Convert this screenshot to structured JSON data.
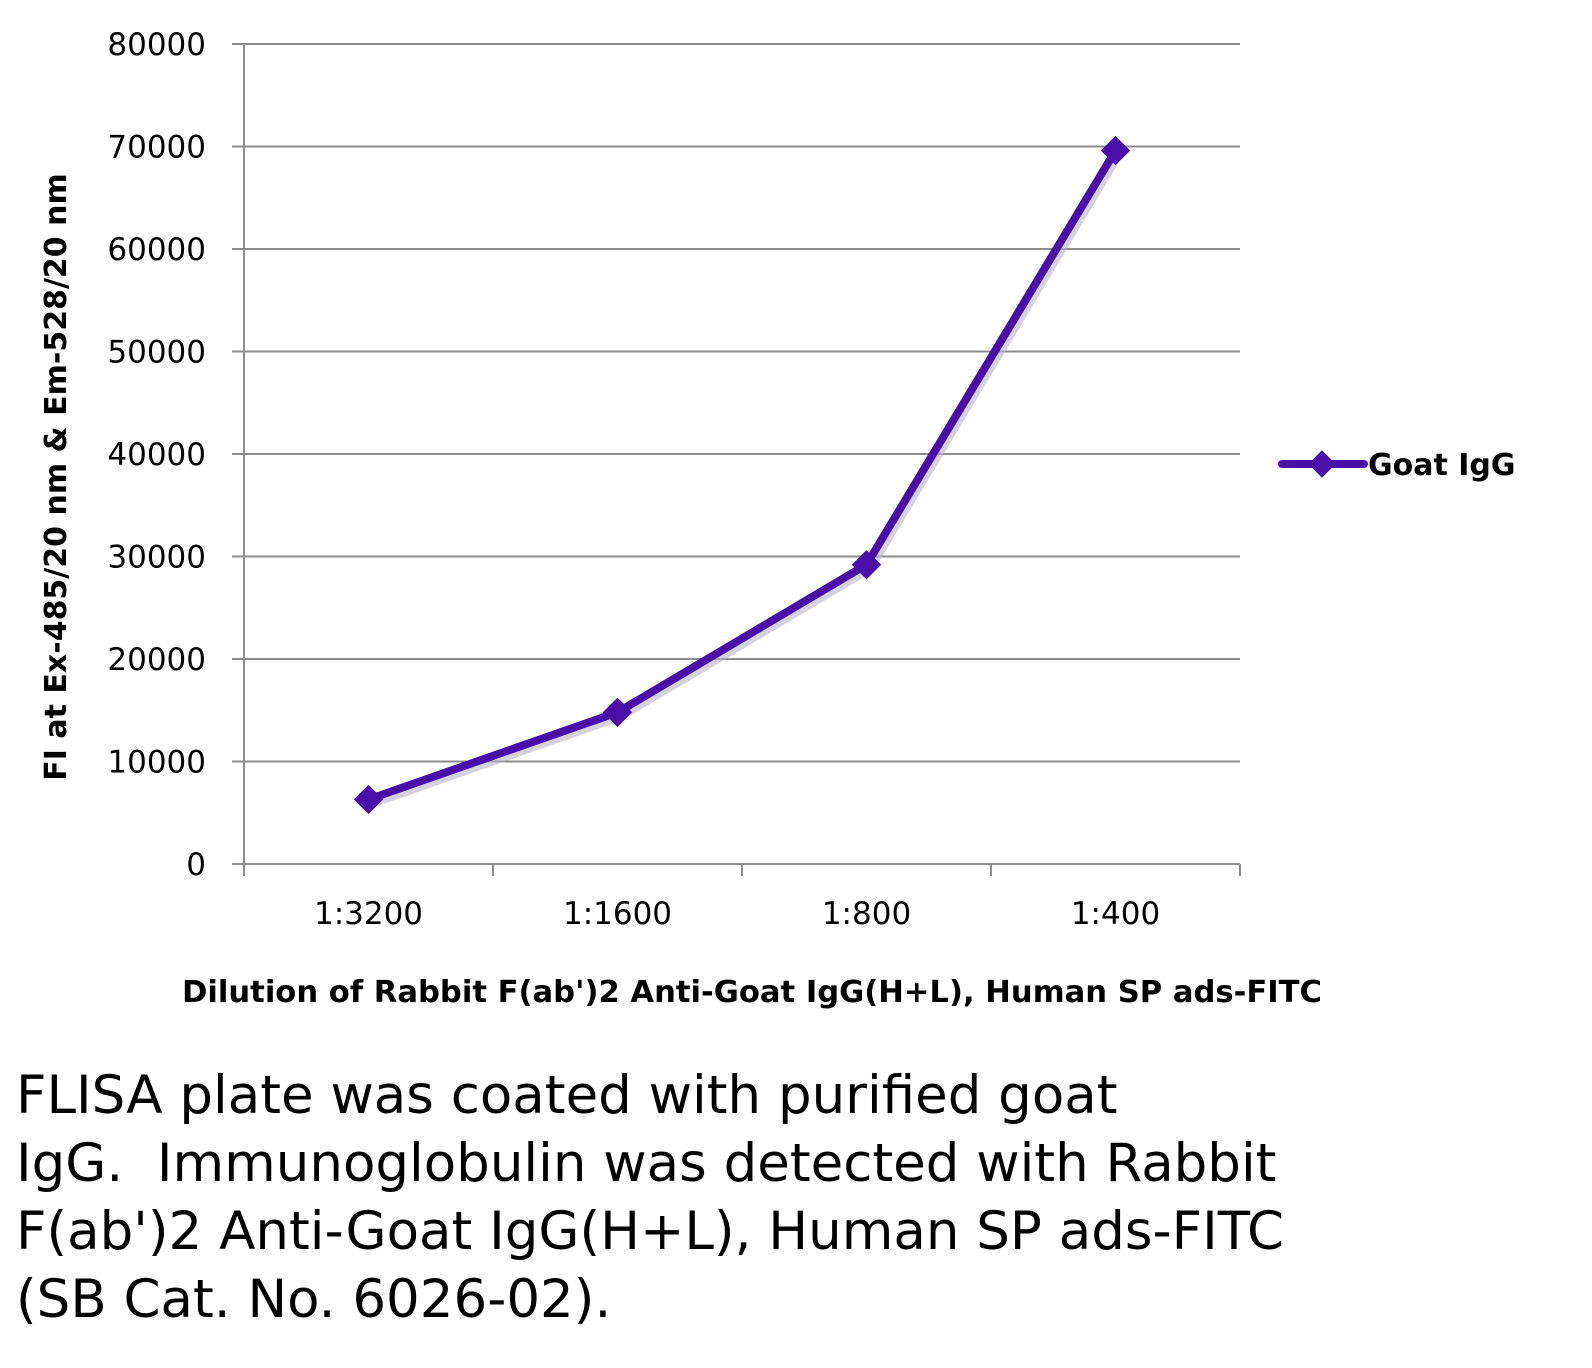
{
  "chart_data": {
    "type": "line",
    "categories": [
      "1:3200",
      "1:1600",
      "1:800",
      "1:400"
    ],
    "series": [
      {
        "name": "Goat IgG",
        "color": "#4a0fa8",
        "values": [
          6300,
          14800,
          29200,
          69600
        ]
      }
    ],
    "ylim": [
      0,
      80000
    ],
    "yticks": [
      "0",
      "10000",
      "20000",
      "30000",
      "40000",
      "50000",
      "60000",
      "70000",
      "80000"
    ],
    "ylabel": "FI at Ex-485/20 nm & Em-528/20 nm",
    "xlabel": "Dilution of Rabbit F(ab')2  Anti-Goat IgG(H+L), Human SP ads-FITC",
    "grid": true,
    "legend_position": "right"
  },
  "caption": {
    "lines": [
      "FLISA plate was coated with purified goat",
      "IgG.  Immunoglobulin was detected with Rabbit",
      "F(ab')2 Anti-Goat IgG(H+L), Human SP ads-FITC",
      "(SB Cat. No. 6026-02)."
    ]
  }
}
